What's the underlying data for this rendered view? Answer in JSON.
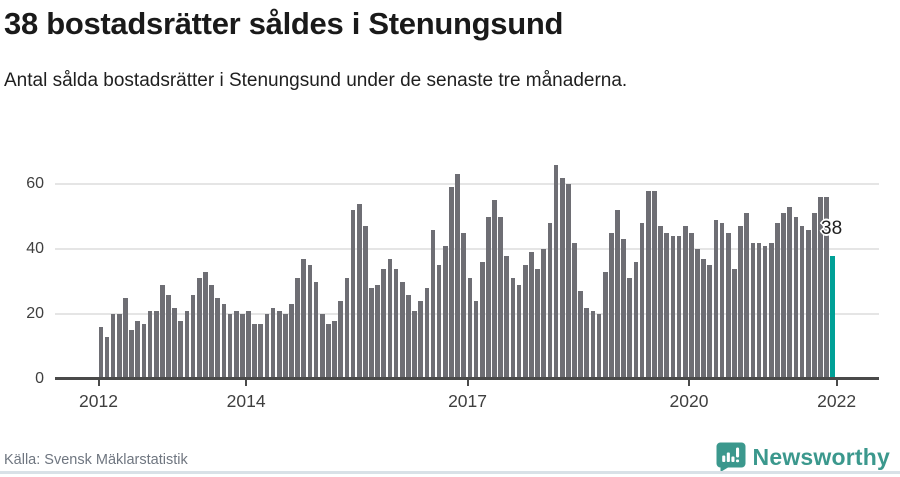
{
  "header": {
    "title": "38 bostadsrätter såldes i Stenungsund",
    "subtitle": "Antal sålda bostadsrätter i Stenungsund under de senaste tre månaderna."
  },
  "chart_data": {
    "type": "bar",
    "title": "38 bostadsrätter såldes i Stenungsund",
    "xlabel": "",
    "ylabel": "",
    "x_start": "2012-01",
    "x_end": "2021-12",
    "frequency": "monthly",
    "values": [
      16,
      13,
      20,
      20,
      25,
      15,
      18,
      17,
      21,
      21,
      29,
      26,
      22,
      18,
      21,
      26,
      31,
      33,
      29,
      25,
      23,
      20,
      21,
      20,
      21,
      17,
      17,
      20,
      22,
      21,
      20,
      23,
      31,
      37,
      35,
      30,
      20,
      17,
      18,
      24,
      31,
      52,
      54,
      47,
      28,
      29,
      34,
      37,
      34,
      30,
      26,
      21,
      24,
      28,
      46,
      35,
      41,
      59,
      63,
      45,
      31,
      24,
      36,
      50,
      55,
      50,
      38,
      31,
      29,
      35,
      39,
      34,
      40,
      48,
      66,
      62,
      60,
      42,
      27,
      22,
      21,
      20,
      33,
      45,
      52,
      43,
      31,
      36,
      48,
      58,
      58,
      47,
      45,
      44,
      44,
      47,
      45,
      40,
      37,
      35,
      49,
      48,
      45,
      34,
      47,
      51,
      42,
      42,
      41,
      42,
      48,
      51,
      53,
      50,
      47,
      46,
      51,
      56,
      56,
      38
    ],
    "highlight_last": true,
    "last_value_label": "38",
    "yticks": [
      0,
      20,
      40,
      60
    ],
    "ylim": [
      0,
      70
    ],
    "x_tick_labels": [
      "2012",
      "2014",
      "2017",
      "2020",
      "2022"
    ],
    "x_tick_month_index": [
      0,
      24,
      60,
      96,
      120
    ],
    "grid": true,
    "legend_position": "none",
    "bar_color": "#6e6e74",
    "highlight_color": "#00a096"
  },
  "footer": {
    "source": "Källa: Svensk Mäklarstatistik",
    "brand": "Newsworthy"
  },
  "colors": {
    "grid": "#e5e5e5",
    "axis": "#4a4a4a",
    "logo_teal": "#3b988d"
  }
}
